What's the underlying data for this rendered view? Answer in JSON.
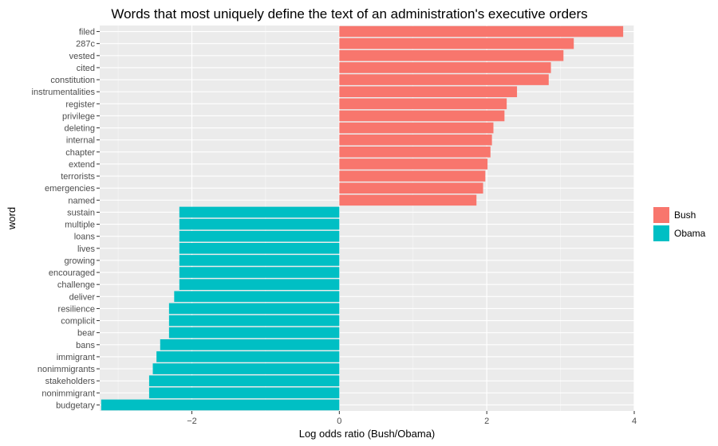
{
  "chart_data": {
    "type": "bar",
    "orientation": "horizontal",
    "title": "Words that most uniquely define the text of an administration's executive orders",
    "xlabel": "Log odds ratio (Bush/Obama)",
    "ylabel": "word",
    "xlim": [
      -3.25,
      4.0
    ],
    "xticks": [
      -2,
      0,
      2,
      4
    ],
    "grid": true,
    "legend_position": "right",
    "legend": [
      {
        "name": "Bush",
        "color": "#F8766D"
      },
      {
        "name": "Obama",
        "color": "#00BFC4"
      }
    ],
    "bars": [
      {
        "word": "filed",
        "value": 3.85,
        "group": "Bush"
      },
      {
        "word": "287c",
        "value": 3.18,
        "group": "Bush"
      },
      {
        "word": "vested",
        "value": 3.04,
        "group": "Bush"
      },
      {
        "word": "cited",
        "value": 2.87,
        "group": "Bush"
      },
      {
        "word": "constitution",
        "value": 2.84,
        "group": "Bush"
      },
      {
        "word": "instrumentalities",
        "value": 2.41,
        "group": "Bush"
      },
      {
        "word": "register",
        "value": 2.27,
        "group": "Bush"
      },
      {
        "word": "privilege",
        "value": 2.24,
        "group": "Bush"
      },
      {
        "word": "deleting",
        "value": 2.09,
        "group": "Bush"
      },
      {
        "word": "internal",
        "value": 2.07,
        "group": "Bush"
      },
      {
        "word": "chapter",
        "value": 2.05,
        "group": "Bush"
      },
      {
        "word": "extend",
        "value": 2.01,
        "group": "Bush"
      },
      {
        "word": "terrorists",
        "value": 1.98,
        "group": "Bush"
      },
      {
        "word": "emergencies",
        "value": 1.95,
        "group": "Bush"
      },
      {
        "word": "named",
        "value": 1.86,
        "group": "Bush"
      },
      {
        "word": "sustain",
        "value": -2.17,
        "group": "Obama"
      },
      {
        "word": "multiple",
        "value": -2.17,
        "group": "Obama"
      },
      {
        "word": "loans",
        "value": -2.17,
        "group": "Obama"
      },
      {
        "word": "lives",
        "value": -2.17,
        "group": "Obama"
      },
      {
        "word": "growing",
        "value": -2.17,
        "group": "Obama"
      },
      {
        "word": "encouraged",
        "value": -2.17,
        "group": "Obama"
      },
      {
        "word": "challenge",
        "value": -2.17,
        "group": "Obama"
      },
      {
        "word": "deliver",
        "value": -2.24,
        "group": "Obama"
      },
      {
        "word": "resilience",
        "value": -2.31,
        "group": "Obama"
      },
      {
        "word": "complicit",
        "value": -2.31,
        "group": "Obama"
      },
      {
        "word": "bear",
        "value": -2.31,
        "group": "Obama"
      },
      {
        "word": "bans",
        "value": -2.43,
        "group": "Obama"
      },
      {
        "word": "immigrant",
        "value": -2.48,
        "group": "Obama"
      },
      {
        "word": "nonimmigrants",
        "value": -2.53,
        "group": "Obama"
      },
      {
        "word": "stakeholders",
        "value": -2.58,
        "group": "Obama"
      },
      {
        "word": "nonimmigrant",
        "value": -2.58,
        "group": "Obama"
      },
      {
        "word": "budgetary",
        "value": -3.23,
        "group": "Obama"
      }
    ]
  }
}
